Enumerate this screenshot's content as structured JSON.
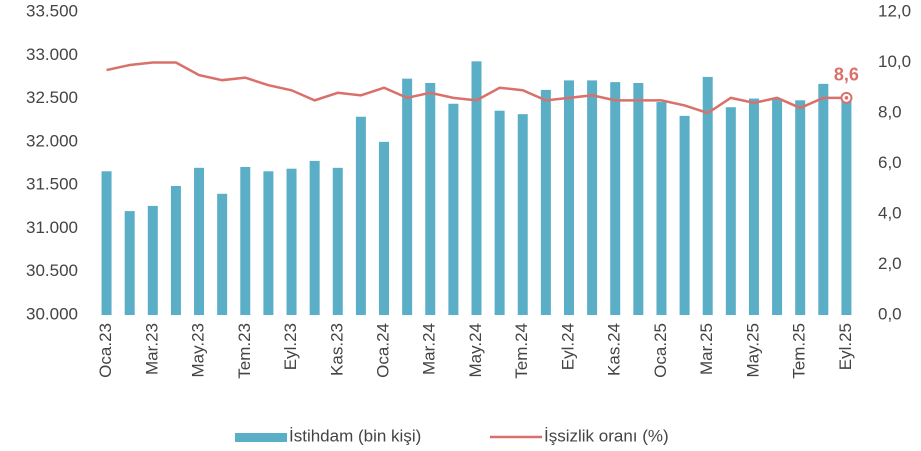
{
  "chart_data": {
    "type": "bar_line",
    "categories": [
      "Oca.23",
      null,
      "Mar.23",
      null,
      "May.23",
      null,
      "Tem.23",
      null,
      "Eyl.23",
      null,
      "Kas.23",
      null,
      "Oca.24",
      null,
      "Mar.24",
      null,
      "May.24",
      null,
      "Tem.24",
      null,
      "Eyl.24",
      null,
      "Kas.24",
      null,
      "Oca.25",
      null,
      "Mar.25",
      null,
      "May.25",
      null,
      "Tem.25",
      null,
      "Eyl.25"
    ],
    "series": [
      {
        "name": "İstihdam (bin kişi)",
        "type": "bar",
        "color": "#5aafc6",
        "axis": "y",
        "values": [
          31660,
          31200,
          31260,
          31490,
          31700,
          31400,
          31710,
          31660,
          31690,
          31780,
          31700,
          32290,
          32000,
          32730,
          32680,
          32440,
          32930,
          32360,
          32320,
          32600,
          32710,
          32710,
          32690,
          32680,
          32460,
          32300,
          32750,
          32400,
          32500,
          32500,
          32480,
          32670,
          32520
        ]
      },
      {
        "name": "İşsizlik oranı (%)",
        "type": "line",
        "color": "#d9706b",
        "axis": "y2",
        "values": [
          9.7,
          9.9,
          10.0,
          10.0,
          9.5,
          9.3,
          9.4,
          9.1,
          8.9,
          8.5,
          8.8,
          8.7,
          9.0,
          8.6,
          8.8,
          8.6,
          8.5,
          9.0,
          8.9,
          8.5,
          8.6,
          8.7,
          8.5,
          8.5,
          8.5,
          8.3,
          8.0,
          8.6,
          8.4,
          8.6,
          8.2,
          8.6,
          8.6
        ],
        "value_labels": [
          null,
          null,
          null,
          null,
          null,
          null,
          null,
          null,
          null,
          null,
          null,
          null,
          null,
          null,
          null,
          null,
          null,
          null,
          null,
          null,
          null,
          null,
          null,
          null,
          null,
          null,
          null,
          null,
          null,
          null,
          null,
          null,
          "8,6"
        ]
      }
    ],
    "ylim": [
      30000,
      33500
    ],
    "yticks": [
      {
        "value": 30000,
        "label": "30.000"
      },
      {
        "value": 30500,
        "label": "30.500"
      },
      {
        "value": 31000,
        "label": "31.000"
      },
      {
        "value": 31500,
        "label": "31.500"
      },
      {
        "value": 32000,
        "label": "32.000"
      },
      {
        "value": 32500,
        "label": "32.500"
      },
      {
        "value": 33000,
        "label": "33.000"
      },
      {
        "value": 33500,
        "label": "33.500"
      }
    ],
    "y2lim": [
      0,
      12
    ],
    "y2ticks": [
      {
        "value": 0,
        "label": "0,0"
      },
      {
        "value": 2,
        "label": "2,0"
      },
      {
        "value": 4,
        "label": "4,0"
      },
      {
        "value": 6,
        "label": "6,0"
      },
      {
        "value": 8,
        "label": "8,0"
      },
      {
        "value": 10,
        "label": "10,0"
      },
      {
        "value": 12,
        "label": "12,0"
      }
    ],
    "legend": "bottom"
  }
}
